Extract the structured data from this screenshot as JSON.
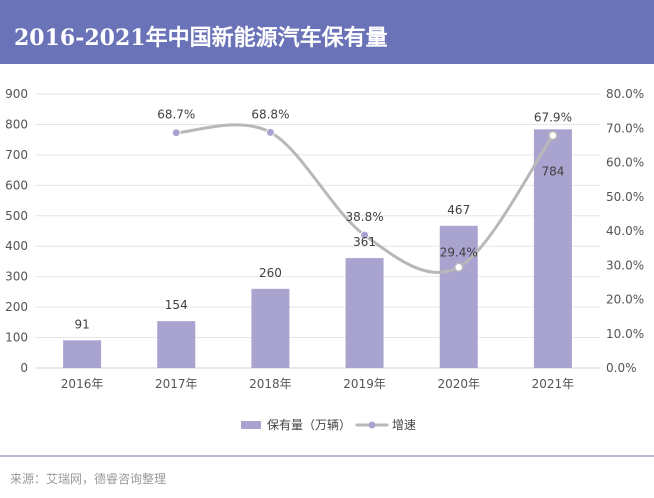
{
  "header": {
    "title": "2016-2021年中国新能源汽车保有量"
  },
  "source": "来源：艾瑞网，德睿咨询整理",
  "colors": {
    "header_bg": "#6a72b8",
    "bar": "#a9a3d0",
    "line": "#b8b8b8",
    "marker": "#a9a3d0"
  },
  "chart_data": {
    "type": "bar",
    "categories": [
      "2016年",
      "2017年",
      "2018年",
      "2019年",
      "2020年",
      "2021年"
    ],
    "series": [
      {
        "name": "保有量（万辆）",
        "type": "bar",
        "axis": "left",
        "values": [
          91,
          154,
          260,
          361,
          467,
          784
        ],
        "labels": [
          "91",
          "154",
          "260",
          "361",
          "467",
          "784"
        ]
      },
      {
        "name": "增速",
        "type": "line",
        "axis": "right",
        "smooth": true,
        "values": [
          null,
          68.7,
          68.8,
          38.8,
          29.4,
          67.9
        ],
        "labels": [
          "",
          "68.7%",
          "68.8%",
          "38.8%",
          "29.4%",
          "67.9%"
        ]
      }
    ],
    "y_left": {
      "min": 0,
      "max": 900,
      "step": 100,
      "ticks": [
        "0",
        "100",
        "200",
        "300",
        "400",
        "500",
        "600",
        "700",
        "800",
        "900"
      ]
    },
    "y_right": {
      "min": 0,
      "max": 80,
      "step": 10,
      "ticks": [
        "0.0%",
        "10.0%",
        "20.0%",
        "30.0%",
        "40.0%",
        "50.0%",
        "60.0%",
        "70.0%",
        "80.0%"
      ]
    },
    "grid": true,
    "legend_position": "bottom"
  }
}
